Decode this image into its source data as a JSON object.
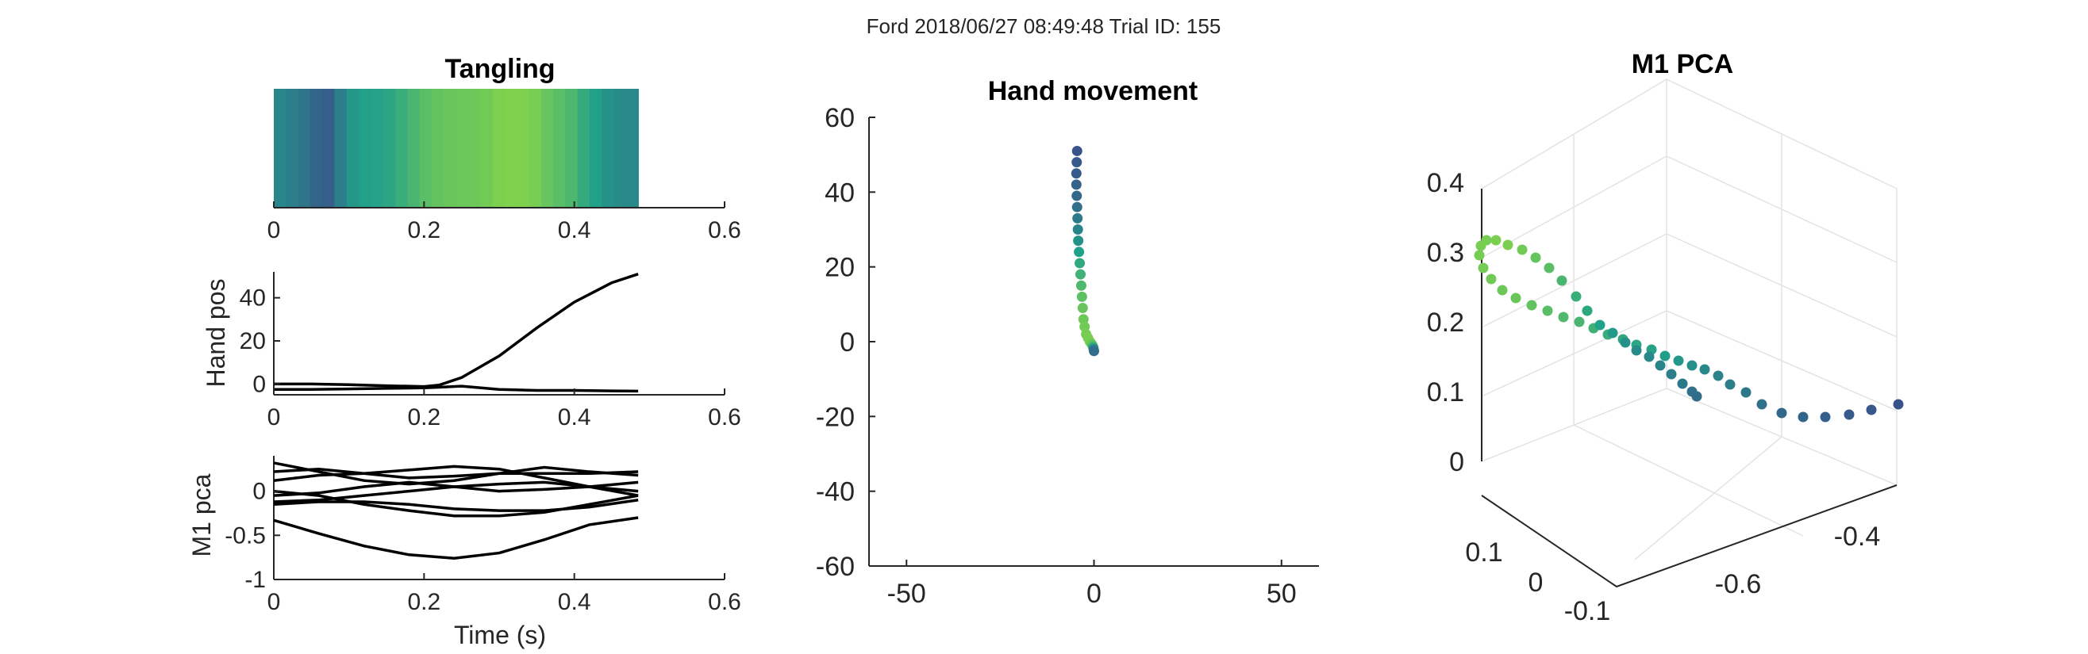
{
  "figure_title": "Ford 2018/06/27 08:49:48 Trial ID: 155",
  "colors": {
    "dark": "#3b4a8a",
    "mid": "#21a08a",
    "light": "#86d549"
  },
  "chart_data": [
    {
      "id": "tangling",
      "type": "heatmap",
      "title": "Tangling",
      "xlim": [
        0,
        0.6
      ],
      "xticks": [
        "0",
        "0.2",
        "0.4",
        "0.6"
      ],
      "xrange": [
        0,
        0.485
      ],
      "values": [
        0.35,
        0.3,
        0.25,
        0.15,
        0.12,
        0.3,
        0.45,
        0.5,
        0.52,
        0.55,
        0.62,
        0.7,
        0.78,
        0.83,
        0.86,
        0.87,
        0.88,
        0.9,
        0.95,
        0.97,
        0.96,
        0.93,
        0.85,
        0.78,
        0.72,
        0.6,
        0.5,
        0.42,
        0.38,
        0.36
      ]
    },
    {
      "id": "hand-pos",
      "type": "line",
      "ylabel": "Hand pos",
      "xlim": [
        0,
        0.6
      ],
      "ylim": [
        -5,
        52
      ],
      "xticks": [
        "0",
        "0.2",
        "0.4",
        "0.6"
      ],
      "yticks": [
        "0",
        "20",
        "40"
      ],
      "x": [
        0,
        0.05,
        0.1,
        0.15,
        0.2,
        0.22,
        0.25,
        0.3,
        0.35,
        0.4,
        0.45,
        0.485
      ],
      "series": [
        {
          "values": [
            0,
            0,
            -0.3,
            -0.8,
            -1.2,
            -0.5,
            3,
            13,
            26,
            38,
            47,
            51
          ]
        },
        {
          "values": [
            -2.5,
            -2.5,
            -2.3,
            -2,
            -1.8,
            -1.5,
            -1,
            -2.5,
            -3,
            -3,
            -3.2,
            -3.3
          ]
        }
      ]
    },
    {
      "id": "m1-pca",
      "type": "line",
      "ylabel": "M1 pca",
      "xlabel": "Time (s)",
      "xlim": [
        0,
        0.6
      ],
      "ylim": [
        -1,
        0.4
      ],
      "xticks": [
        "0",
        "0.2",
        "0.4",
        "0.6"
      ],
      "yticks": [
        "-1",
        "-0.5",
        "0"
      ],
      "x": [
        0,
        0.06,
        0.12,
        0.18,
        0.24,
        0.3,
        0.36,
        0.42,
        0.485
      ],
      "series": [
        {
          "values": [
            0.32,
            0.22,
            0.12,
            0.08,
            0.12,
            0.2,
            0.27,
            0.22,
            0.18
          ]
        },
        {
          "values": [
            0.22,
            0.25,
            0.2,
            0.15,
            0.17,
            0.2,
            0.2,
            0.2,
            0.22
          ]
        },
        {
          "values": [
            0.12,
            0.18,
            0.2,
            0.24,
            0.28,
            0.25,
            0.15,
            0.05,
            0.0
          ]
        },
        {
          "values": [
            -0.05,
            -0.02,
            0.05,
            0.1,
            0.05,
            0.0,
            0.02,
            0.05,
            0.1
          ]
        },
        {
          "values": [
            -0.12,
            -0.1,
            -0.05,
            0.0,
            0.05,
            0.08,
            0.1,
            0.05,
            -0.05
          ]
        },
        {
          "values": [
            -0.15,
            -0.12,
            -0.12,
            -0.15,
            -0.2,
            -0.22,
            -0.22,
            -0.18,
            -0.1
          ]
        },
        {
          "values": [
            0.0,
            -0.05,
            -0.15,
            -0.22,
            -0.28,
            -0.28,
            -0.24,
            -0.15,
            -0.05
          ]
        },
        {
          "values": [
            -0.33,
            -0.48,
            -0.62,
            -0.72,
            -0.76,
            -0.7,
            -0.55,
            -0.38,
            -0.3
          ]
        }
      ]
    },
    {
      "id": "hand-movement",
      "type": "scatter",
      "title": "Hand movement",
      "xlim": [
        -60,
        60
      ],
      "ylim": [
        -60,
        60
      ],
      "xticks": [
        "-50",
        "0",
        "50"
      ],
      "yticks": [
        "-60",
        "-40",
        "-20",
        "0",
        "20",
        "40",
        "60"
      ],
      "x": [
        -4.5,
        -4.6,
        -4.7,
        -4.7,
        -4.6,
        -4.5,
        -4.4,
        -4.3,
        -4.2,
        -4.0,
        -3.8,
        -3.6,
        -3.4,
        -3.2,
        -3.0,
        -2.8,
        -2.5,
        -2.1,
        -1.6,
        -1.1,
        -0.7,
        -0.4,
        -0.2,
        -0.1,
        0.0
      ],
      "y": [
        51,
        48,
        45,
        42,
        39,
        36,
        33,
        30,
        27,
        24,
        21,
        18,
        15,
        12,
        9,
        6,
        4,
        2,
        1,
        0,
        -0.5,
        -1,
        -1.5,
        -2,
        -2.5
      ],
      "color_t": [
        0.05,
        0.08,
        0.1,
        0.14,
        0.18,
        0.22,
        0.28,
        0.34,
        0.42,
        0.5,
        0.58,
        0.66,
        0.74,
        0.8,
        0.85,
        0.88,
        0.9,
        0.92,
        0.93,
        0.94,
        0.9,
        0.8,
        0.6,
        0.35,
        0.2
      ]
    },
    {
      "id": "m1-pca-3d",
      "type": "scatter",
      "title": "M1 PCA",
      "yticks_left": [
        "0",
        "0.1",
        "0.2",
        "0.3",
        "0.4"
      ],
      "ticks_front_right": [
        "-0.6",
        "-0.4"
      ],
      "ticks_front_left": [
        "0.1",
        "0",
        "-0.1"
      ]
    }
  ]
}
